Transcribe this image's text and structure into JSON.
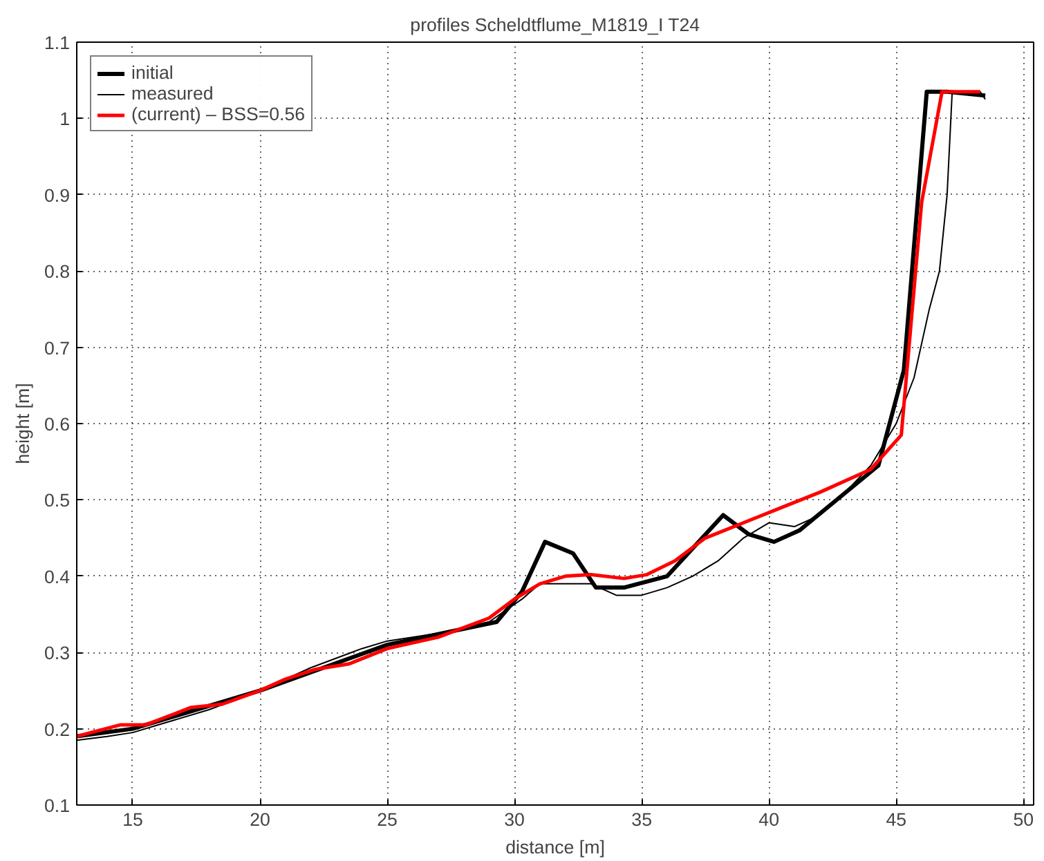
{
  "chart_data": {
    "type": "line",
    "title": "profiles Scheldtflume_M1819_I T24",
    "xlabel": "distance [m]",
    "ylabel": "height [m]",
    "xlim": [
      12.8,
      50.4
    ],
    "ylim": [
      0.1,
      1.1
    ],
    "xticks": [
      15,
      20,
      25,
      30,
      35,
      40,
      45,
      50
    ],
    "yticks": [
      0.1,
      0.2,
      0.3,
      0.4,
      0.5,
      0.6,
      0.7,
      0.8,
      0.9,
      1,
      1.1
    ],
    "grid": true,
    "legend": "top left",
    "line_style": "solid",
    "marker": "none",
    "series": [
      {
        "name": "initial",
        "color": "#000000",
        "x": [
          12.8,
          15,
          20,
          25,
          29.3,
          30.3,
          31.2,
          32.3,
          33.2,
          34.3,
          36,
          38.2,
          39.2,
          40.2,
          41.2,
          44.3,
          45.3,
          46.2,
          47,
          48.5
        ],
        "values": [
          0.19,
          0.2,
          0.25,
          0.31,
          0.34,
          0.38,
          0.445,
          0.43,
          0.385,
          0.385,
          0.4,
          0.48,
          0.455,
          0.445,
          0.46,
          0.545,
          0.67,
          1.035,
          1.035,
          1.03
        ]
      },
      {
        "name": "measured",
        "color": "#000000",
        "x": [
          12.8,
          14,
          15,
          16,
          18,
          20,
          22,
          24,
          25,
          27,
          29,
          30.3,
          31,
          33,
          34,
          35,
          36,
          37,
          38,
          39,
          40,
          41,
          42,
          43,
          44,
          45,
          45.7,
          46.3,
          46.7,
          47,
          47.2,
          48.3,
          48.5
        ],
        "values": [
          0.185,
          0.19,
          0.195,
          0.205,
          0.225,
          0.25,
          0.28,
          0.305,
          0.315,
          0.325,
          0.34,
          0.37,
          0.39,
          0.39,
          0.375,
          0.375,
          0.385,
          0.4,
          0.42,
          0.45,
          0.47,
          0.465,
          0.48,
          0.51,
          0.545,
          0.6,
          0.66,
          0.75,
          0.8,
          0.9,
          1.035,
          1.035,
          1.025
        ]
      },
      {
        "name": "(current) – BSS=0.56",
        "color": "#ff0000",
        "x": [
          12.8,
          14.5,
          15.5,
          17.3,
          18.5,
          20,
          21,
          22.2,
          23.5,
          25,
          27,
          29,
          30,
          31,
          32,
          33,
          34.3,
          35.2,
          36.3,
          37.5,
          39,
          40.5,
          42,
          44,
          45.2,
          46,
          46.8,
          48.3
        ],
        "values": [
          0.19,
          0.205,
          0.205,
          0.228,
          0.232,
          0.25,
          0.265,
          0.278,
          0.285,
          0.305,
          0.32,
          0.345,
          0.37,
          0.39,
          0.4,
          0.402,
          0.397,
          0.402,
          0.42,
          0.45,
          0.47,
          0.49,
          0.51,
          0.54,
          0.585,
          0.89,
          1.035,
          1.035
        ]
      }
    ]
  }
}
